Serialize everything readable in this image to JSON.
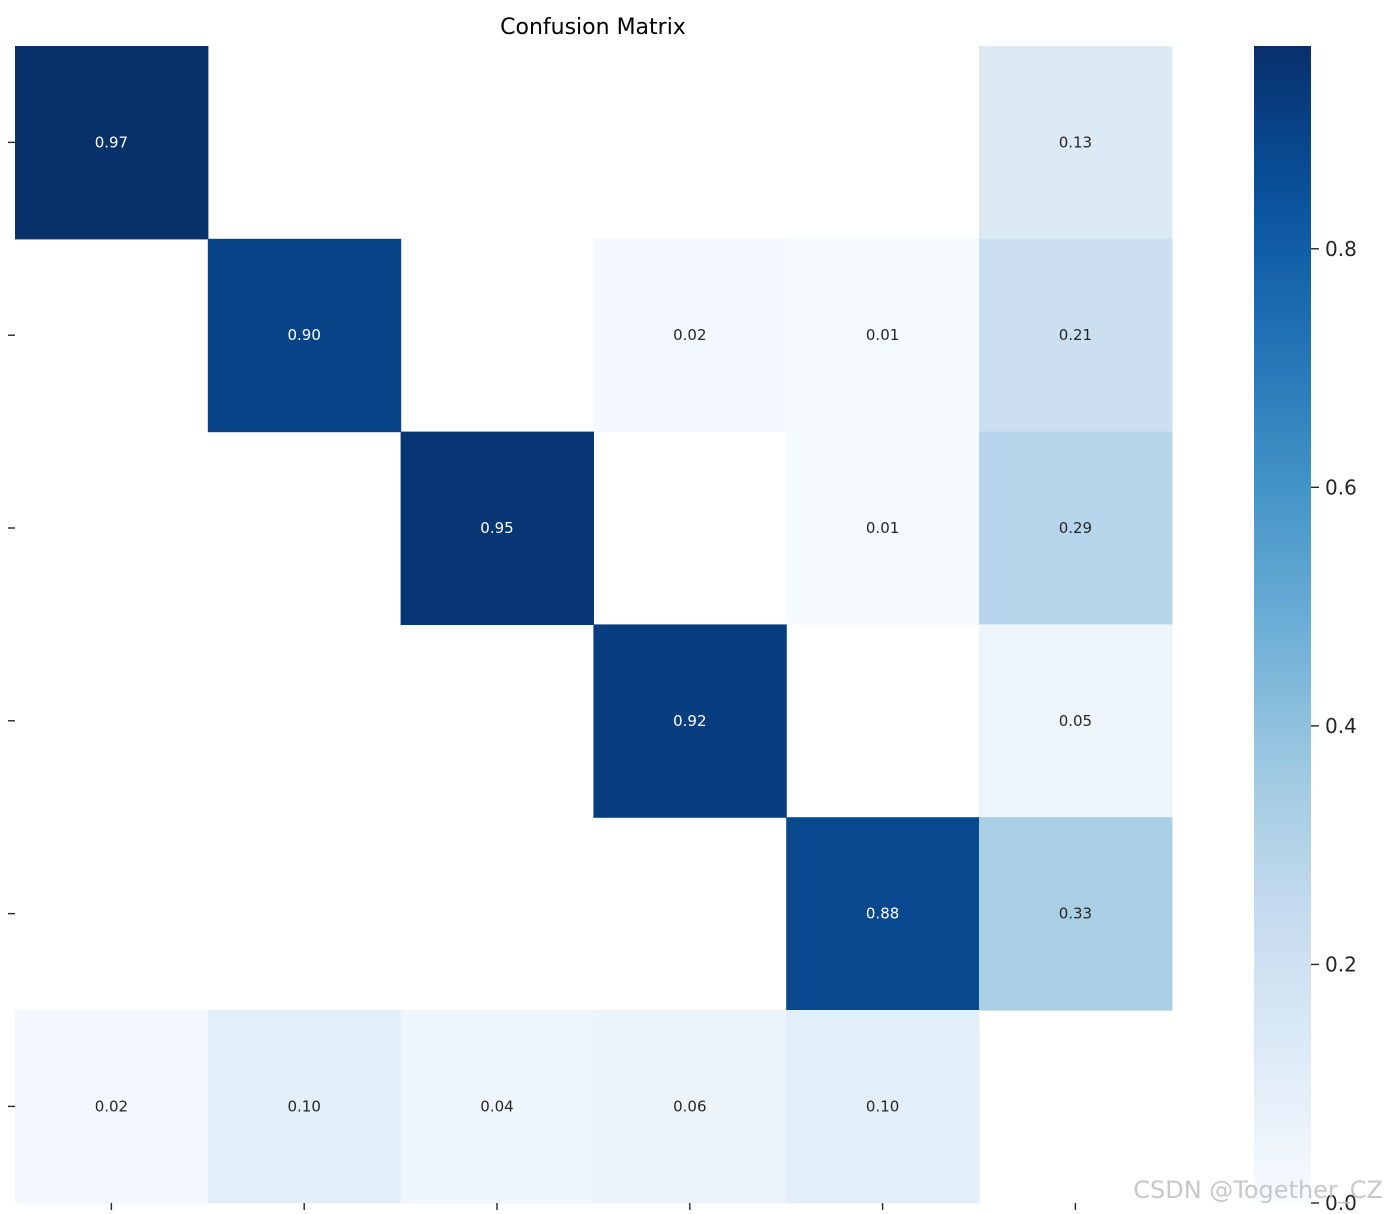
{
  "colormap": "Blues",
  "chart_data": {
    "type": "heatmap",
    "title": "Confusion Matrix",
    "xlabel": "",
    "ylabel": "",
    "rows": 6,
    "cols": 6,
    "matrix": [
      [
        0.97,
        null,
        null,
        null,
        null,
        0.13
      ],
      [
        null,
        0.9,
        null,
        0.02,
        0.01,
        0.21
      ],
      [
        null,
        null,
        0.95,
        null,
        0.01,
        0.29
      ],
      [
        null,
        null,
        null,
        0.92,
        null,
        0.05
      ],
      [
        null,
        null,
        null,
        null,
        0.88,
        0.33
      ],
      [
        0.02,
        0.1,
        0.04,
        0.06,
        0.1,
        null
      ]
    ],
    "cell_labels": [
      [
        "0.97",
        "",
        "",
        "",
        "",
        "0.13"
      ],
      [
        "",
        "0.90",
        "",
        "0.02",
        "0.01",
        "0.21"
      ],
      [
        "",
        "",
        "0.95",
        "",
        "0.01",
        "0.29"
      ],
      [
        "",
        "",
        "",
        "0.92",
        "",
        "0.05"
      ],
      [
        "",
        "",
        "",
        "",
        "0.88",
        "0.33"
      ],
      [
        "0.02",
        "0.10",
        "0.04",
        "0.06",
        "0.10",
        ""
      ]
    ],
    "colorbar": {
      "range": [
        0.0,
        0.97
      ],
      "ticks": [
        0.0,
        0.2,
        0.4,
        0.6,
        0.8
      ],
      "tick_labels": [
        "0.0",
        "0.2",
        "0.4",
        "0.6",
        "0.8"
      ]
    },
    "x_tick_labels": [
      "",
      "",
      "",
      "",
      "",
      ""
    ],
    "y_tick_labels": [
      "",
      "",
      "",
      "",
      "",
      ""
    ]
  },
  "watermark": "CSDN @Together_CZ"
}
